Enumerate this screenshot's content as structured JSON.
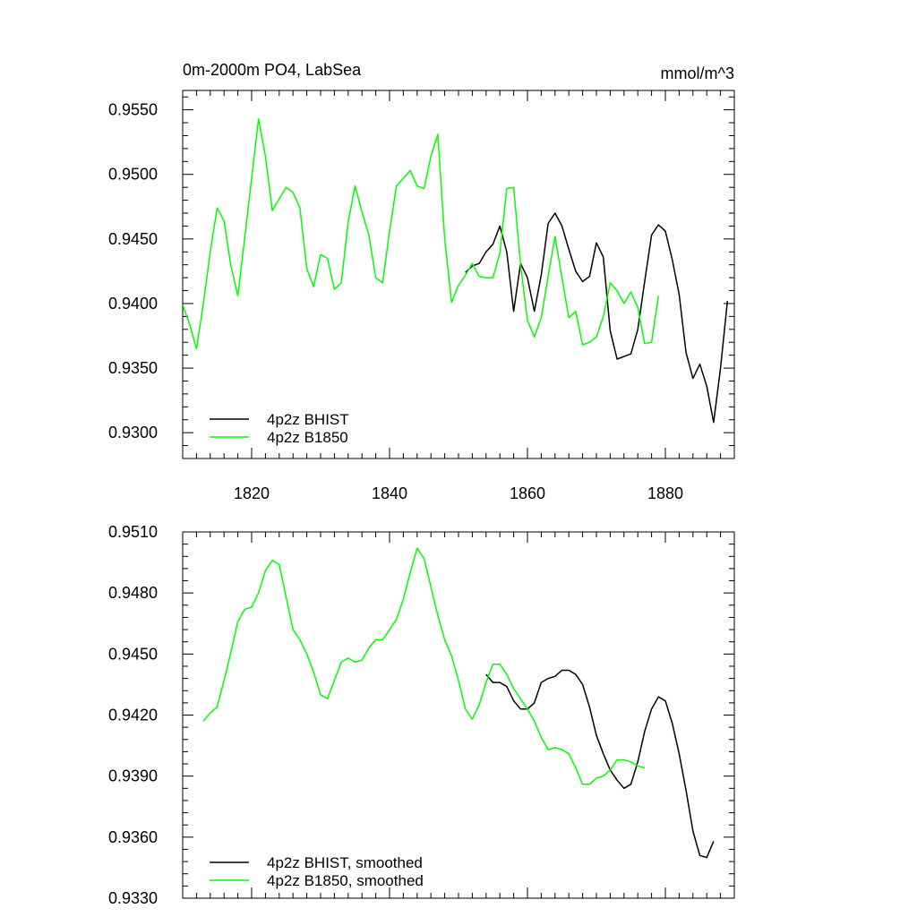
{
  "chart_data": [
    {
      "type": "line",
      "title": "0m-2000m PO4, LabSea",
      "units": "mmol/m^3",
      "xlabel": "",
      "ylabel": "",
      "xlim": [
        1810,
        1890
      ],
      "ylim": [
        0.928,
        0.9565
      ],
      "xticks": [
        1820,
        1840,
        1860,
        1880
      ],
      "xtick_labels": [
        "1820",
        "1840",
        "1860",
        "1880"
      ],
      "yticks": [
        0.93,
        0.935,
        0.94,
        0.945,
        0.95,
        0.955
      ],
      "ytick_labels": [
        "0.9300",
        "0.9350",
        "0.9400",
        "0.9450",
        "0.9500",
        "0.9550"
      ],
      "legend_position": "bottom-left",
      "series": [
        {
          "name": "4p2z BHIST",
          "color": "#000000",
          "x": [
            1851,
            1852,
            1853,
            1854,
            1855,
            1856,
            1857,
            1858,
            1859,
            1860,
            1861,
            1862,
            1863,
            1864,
            1865,
            1866,
            1867,
            1868,
            1869,
            1870,
            1871,
            1872,
            1873,
            1874,
            1875,
            1876,
            1877,
            1878,
            1879,
            1880,
            1881,
            1882,
            1883,
            1884,
            1885,
            1886,
            1887,
            1888,
            1889
          ],
          "y": [
            0.9424,
            0.9429,
            0.9431,
            0.944,
            0.9446,
            0.946,
            0.944,
            0.9394,
            0.9431,
            0.942,
            0.9394,
            0.9422,
            0.9462,
            0.947,
            0.946,
            0.9442,
            0.9425,
            0.9417,
            0.9421,
            0.9447,
            0.9436,
            0.9379,
            0.9357,
            0.9359,
            0.9361,
            0.938,
            0.9417,
            0.9453,
            0.9461,
            0.9456,
            0.9434,
            0.9407,
            0.9362,
            0.9342,
            0.9353,
            0.9336,
            0.9308,
            0.935,
            0.9402
          ]
        },
        {
          "name": "4p2z B1850",
          "color": "#00ff00",
          "x": [
            1810,
            1811,
            1812,
            1813,
            1814,
            1815,
            1816,
            1817,
            1818,
            1819,
            1820,
            1821,
            1822,
            1823,
            1824,
            1825,
            1826,
            1827,
            1828,
            1829,
            1830,
            1831,
            1832,
            1833,
            1834,
            1835,
            1836,
            1837,
            1838,
            1839,
            1840,
            1841,
            1842,
            1843,
            1844,
            1845,
            1846,
            1847,
            1848,
            1849,
            1850,
            1851,
            1852,
            1853,
            1854,
            1855,
            1856,
            1857,
            1858,
            1859,
            1860,
            1861,
            1862,
            1863,
            1864,
            1865,
            1866,
            1867,
            1868,
            1869,
            1870,
            1871,
            1872,
            1873,
            1874,
            1875,
            1876,
            1877,
            1878,
            1879
          ],
          "y": [
            0.9399,
            0.9384,
            0.9365,
            0.94,
            0.944,
            0.9474,
            0.9464,
            0.9429,
            0.9406,
            0.9451,
            0.9497,
            0.9543,
            0.9514,
            0.9472,
            0.9481,
            0.949,
            0.9486,
            0.9474,
            0.9427,
            0.9413,
            0.9438,
            0.9435,
            0.9411,
            0.9416,
            0.9463,
            0.9491,
            0.9471,
            0.9453,
            0.942,
            0.9416,
            0.9456,
            0.9491,
            0.9497,
            0.9503,
            0.9491,
            0.9489,
            0.9514,
            0.9531,
            0.945,
            0.9401,
            0.9414,
            0.9422,
            0.9431,
            0.9421,
            0.942,
            0.942,
            0.9439,
            0.9489,
            0.949,
            0.943,
            0.9387,
            0.9374,
            0.9389,
            0.9421,
            0.9452,
            0.942,
            0.9389,
            0.9394,
            0.9368,
            0.937,
            0.9374,
            0.939,
            0.9416,
            0.941,
            0.94,
            0.9409,
            0.9397,
            0.9369,
            0.937,
            0.9406
          ]
        }
      ]
    },
    {
      "type": "line",
      "title": "",
      "xlabel": "",
      "ylabel": "",
      "xlim": [
        1810,
        1890
      ],
      "ylim": [
        0.933,
        0.951
      ],
      "xticks": [
        1820,
        1840,
        1860,
        1880
      ],
      "xtick_labels": [],
      "yticks": [
        0.933,
        0.936,
        0.939,
        0.942,
        0.945,
        0.948,
        0.951
      ],
      "ytick_labels": [
        "0.9330",
        "0.9360",
        "0.9390",
        "0.9420",
        "0.9450",
        "0.9480",
        "0.9510"
      ],
      "legend_position": "bottom-left",
      "series": [
        {
          "name": "4p2z BHIST, smoothed",
          "color": "#000000",
          "x": [
            1854,
            1855,
            1856,
            1857,
            1858,
            1859,
            1860,
            1861,
            1862,
            1863,
            1864,
            1865,
            1866,
            1867,
            1868,
            1869,
            1870,
            1871,
            1872,
            1873,
            1874,
            1875,
            1876,
            1877,
            1878,
            1879,
            1880,
            1881,
            1882,
            1883,
            1884,
            1885,
            1886,
            1887
          ],
          "y": [
            0.944,
            0.9436,
            0.9436,
            0.9434,
            0.9427,
            0.9423,
            0.9423,
            0.9426,
            0.9436,
            0.9438,
            0.9439,
            0.9442,
            0.9442,
            0.944,
            0.9435,
            0.9424,
            0.941,
            0.9401,
            0.9393,
            0.9388,
            0.9384,
            0.9386,
            0.9397,
            0.9412,
            0.9423,
            0.9429,
            0.9427,
            0.9416,
            0.9401,
            0.9383,
            0.9363,
            0.9351,
            0.935,
            0.9358
          ]
        },
        {
          "name": "4p2z B1850, smoothed",
          "color": "#00ff00",
          "x": [
            1813,
            1814,
            1815,
            1816,
            1817,
            1818,
            1819,
            1820,
            1821,
            1822,
            1823,
            1824,
            1825,
            1826,
            1827,
            1828,
            1829,
            1830,
            1831,
            1832,
            1833,
            1834,
            1835,
            1836,
            1837,
            1838,
            1839,
            1840,
            1841,
            1842,
            1843,
            1844,
            1845,
            1846,
            1847,
            1848,
            1849,
            1850,
            1851,
            1852,
            1853,
            1854,
            1855,
            1856,
            1857,
            1858,
            1859,
            1860,
            1861,
            1862,
            1863,
            1864,
            1865,
            1866,
            1867,
            1868,
            1869,
            1870,
            1871,
            1872,
            1873,
            1874,
            1875,
            1876,
            1877
          ],
          "y": [
            0.9417,
            0.9421,
            0.9424,
            0.9437,
            0.9451,
            0.9466,
            0.9472,
            0.9473,
            0.948,
            0.9491,
            0.9496,
            0.9494,
            0.9478,
            0.9462,
            0.9457,
            0.945,
            0.9441,
            0.943,
            0.9428,
            0.9437,
            0.9446,
            0.9448,
            0.9446,
            0.9447,
            0.9453,
            0.9457,
            0.9457,
            0.9462,
            0.9467,
            0.9477,
            0.949,
            0.9502,
            0.9497,
            0.9483,
            0.9469,
            0.9457,
            0.9449,
            0.9437,
            0.9423,
            0.9418,
            0.9425,
            0.9436,
            0.9445,
            0.9445,
            0.944,
            0.9433,
            0.9428,
            0.9423,
            0.9417,
            0.9409,
            0.9403,
            0.9404,
            0.9403,
            0.9401,
            0.9394,
            0.9386,
            0.9386,
            0.9389,
            0.939,
            0.9393,
            0.9398,
            0.9398,
            0.9397,
            0.9395,
            0.9394
          ]
        }
      ]
    }
  ]
}
